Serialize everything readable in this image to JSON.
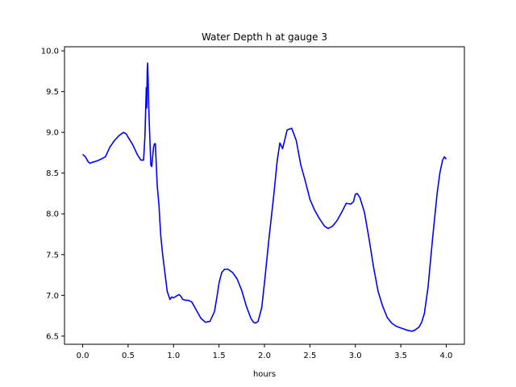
{
  "chart_data": {
    "type": "line",
    "title": "Water Depth h at gauge 3",
    "xlabel": "hours",
    "ylabel": "",
    "xlim": [
      -0.2,
      4.2
    ],
    "ylim": [
      6.4,
      10.05
    ],
    "xticks": [
      0.0,
      0.5,
      1.0,
      1.5,
      2.0,
      2.5,
      3.0,
      3.5,
      4.0
    ],
    "xtick_labels": [
      "0.0",
      "0.5",
      "1.0",
      "1.5",
      "2.0",
      "2.5",
      "3.0",
      "3.5",
      "4.0"
    ],
    "yticks": [
      6.5,
      7.0,
      7.5,
      8.0,
      8.5,
      9.0,
      9.5,
      10.0
    ],
    "ytick_labels": [
      "6.5",
      "7.0",
      "7.5",
      "8.0",
      "8.5",
      "9.0",
      "9.5",
      "10.0"
    ],
    "grid": false,
    "series": [
      {
        "color": "#0000ff",
        "x": [
          0.0,
          0.03,
          0.06,
          0.08,
          0.1,
          0.13,
          0.16,
          0.2,
          0.25,
          0.3,
          0.35,
          0.4,
          0.45,
          0.48,
          0.5,
          0.55,
          0.6,
          0.64,
          0.67,
          0.685,
          0.7,
          0.705,
          0.71,
          0.715,
          0.72,
          0.725,
          0.73,
          0.74,
          0.75,
          0.76,
          0.77,
          0.78,
          0.79,
          0.8,
          0.82,
          0.84,
          0.85,
          0.86,
          0.88,
          0.9,
          0.93,
          0.96,
          0.98,
          1.0,
          1.03,
          1.06,
          1.08,
          1.1,
          1.13,
          1.16,
          1.2,
          1.25,
          1.3,
          1.35,
          1.4,
          1.45,
          1.48,
          1.5,
          1.53,
          1.56,
          1.6,
          1.65,
          1.7,
          1.75,
          1.8,
          1.85,
          1.88,
          1.9,
          1.93,
          1.97,
          2.0,
          2.05,
          2.1,
          2.14,
          2.17,
          2.2,
          2.25,
          2.3,
          2.35,
          2.4,
          2.45,
          2.5,
          2.55,
          2.6,
          2.63,
          2.66,
          2.7,
          2.75,
          2.8,
          2.85,
          2.9,
          2.95,
          2.98,
          3.0,
          3.02,
          3.05,
          3.1,
          3.15,
          3.2,
          3.25,
          3.3,
          3.35,
          3.4,
          3.45,
          3.5,
          3.55,
          3.58,
          3.62,
          3.65,
          3.7,
          3.73,
          3.76,
          3.8,
          3.85,
          3.9,
          3.93,
          3.96,
          3.98,
          4.0
        ],
        "y": [
          8.73,
          8.7,
          8.64,
          8.62,
          8.63,
          8.64,
          8.65,
          8.67,
          8.7,
          8.82,
          8.9,
          8.96,
          9.0,
          8.98,
          8.94,
          8.85,
          8.73,
          8.66,
          8.66,
          8.95,
          9.55,
          9.3,
          9.75,
          9.85,
          9.65,
          9.4,
          9.2,
          8.9,
          8.6,
          8.58,
          8.7,
          8.82,
          8.86,
          8.86,
          8.35,
          8.1,
          7.9,
          7.72,
          7.5,
          7.32,
          7.05,
          6.95,
          6.98,
          6.97,
          6.99,
          7.01,
          6.99,
          6.95,
          6.94,
          6.94,
          6.92,
          6.82,
          6.72,
          6.67,
          6.68,
          6.8,
          7.0,
          7.15,
          7.28,
          7.32,
          7.32,
          7.28,
          7.2,
          7.06,
          6.87,
          6.72,
          6.67,
          6.66,
          6.68,
          6.85,
          7.15,
          7.7,
          8.2,
          8.65,
          8.87,
          8.8,
          9.03,
          9.05,
          8.9,
          8.6,
          8.4,
          8.18,
          8.05,
          7.95,
          7.9,
          7.85,
          7.82,
          7.85,
          7.92,
          8.02,
          8.13,
          8.12,
          8.15,
          8.24,
          8.25,
          8.2,
          8.02,
          7.7,
          7.35,
          7.05,
          6.87,
          6.73,
          6.66,
          6.62,
          6.6,
          6.58,
          6.57,
          6.56,
          6.57,
          6.61,
          6.67,
          6.78,
          7.1,
          7.7,
          8.25,
          8.5,
          8.66,
          8.7,
          8.67
        ]
      }
    ]
  }
}
